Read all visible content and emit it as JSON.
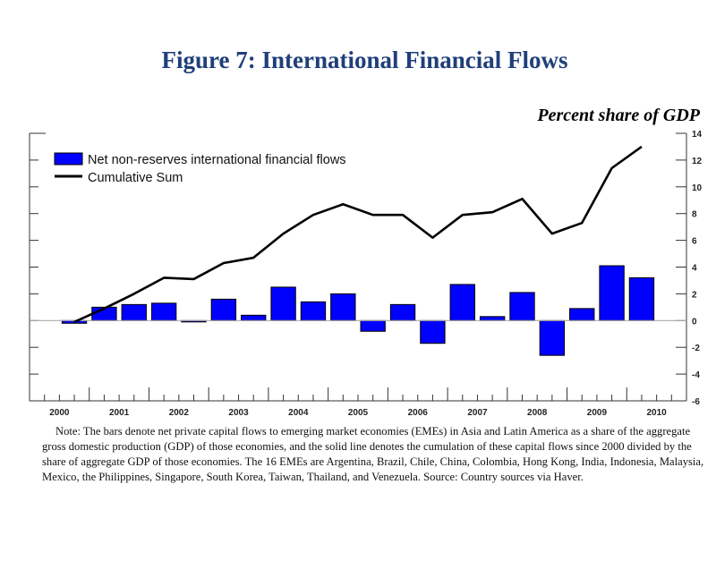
{
  "title": "Figure 7: International Financial Flows",
  "unit_label": "Percent share of GDP",
  "note": "Note: The bars denote net private capital flows to emerging market economies (EMEs) in Asia and Latin America as a share of the aggregate gross domestic production (GDP) of those economies, and the solid line denotes the cumulation of these capital flows since 2000 divided by the share of aggregate GDP of those economies.  The 16 EMEs are Argentina, Brazil, Chile, China, Colombia, Hong Kong, India, Indonesia, Malaysia, Mexico, the Philippines, Singapore, South Korea, Taiwan, Thailand, and Venezuela.  Source: Country sources via Haver.",
  "chart_data": {
    "type": "bar+line",
    "title": "Figure 7: International Financial Flows",
    "ylabel": "Percent share of GDP",
    "ylim": [
      -6,
      14
    ],
    "yticks": [
      14,
      12,
      10,
      8,
      6,
      4,
      2,
      0,
      -2,
      -4,
      -6
    ],
    "y_axis_side": "right",
    "xlim": [
      2000,
      2011
    ],
    "xtick_labels": [
      "2000",
      "2001",
      "2002",
      "2003",
      "2004",
      "2005",
      "2006",
      "2007",
      "2008",
      "2009",
      "2010"
    ],
    "grid": false,
    "legend_placement": "top-left",
    "periods": [
      "2000 H2",
      "2001 H1",
      "2001 H2",
      "2002 H1",
      "2002 H2",
      "2003 H1",
      "2003 H2",
      "2004 H1",
      "2004 H2",
      "2005 H1",
      "2005 H2",
      "2006 H1",
      "2006 H2",
      "2007 H1",
      "2007 H2",
      "2008 H1",
      "2008 H2",
      "2009 H1",
      "2009 H2",
      "2010 H1"
    ],
    "x": [
      2000.75,
      2001.25,
      2001.75,
      2002.25,
      2002.75,
      2003.25,
      2003.75,
      2004.25,
      2004.75,
      2005.25,
      2005.75,
      2006.25,
      2006.75,
      2007.25,
      2007.75,
      2008.25,
      2008.75,
      2009.25,
      2009.75,
      2010.25
    ],
    "series": [
      {
        "name": "Net non-reserves international financial flows",
        "kind": "bar",
        "color": "#0000ff",
        "values": [
          -0.2,
          1.0,
          1.2,
          1.3,
          -0.1,
          1.6,
          0.4,
          2.5,
          1.4,
          2.0,
          -0.8,
          1.2,
          -1.7,
          2.7,
          0.3,
          2.1,
          -2.6,
          0.9,
          4.1,
          3.2
        ]
      },
      {
        "name": "Cumulative Sum",
        "kind": "line",
        "color": "#000000",
        "values": [
          -0.1,
          0.9,
          2.0,
          3.2,
          3.1,
          4.3,
          4.7,
          6.5,
          7.9,
          8.7,
          7.9,
          7.9,
          6.2,
          7.9,
          8.1,
          9.1,
          6.5,
          7.3,
          11.4,
          13.0
        ]
      }
    ]
  }
}
